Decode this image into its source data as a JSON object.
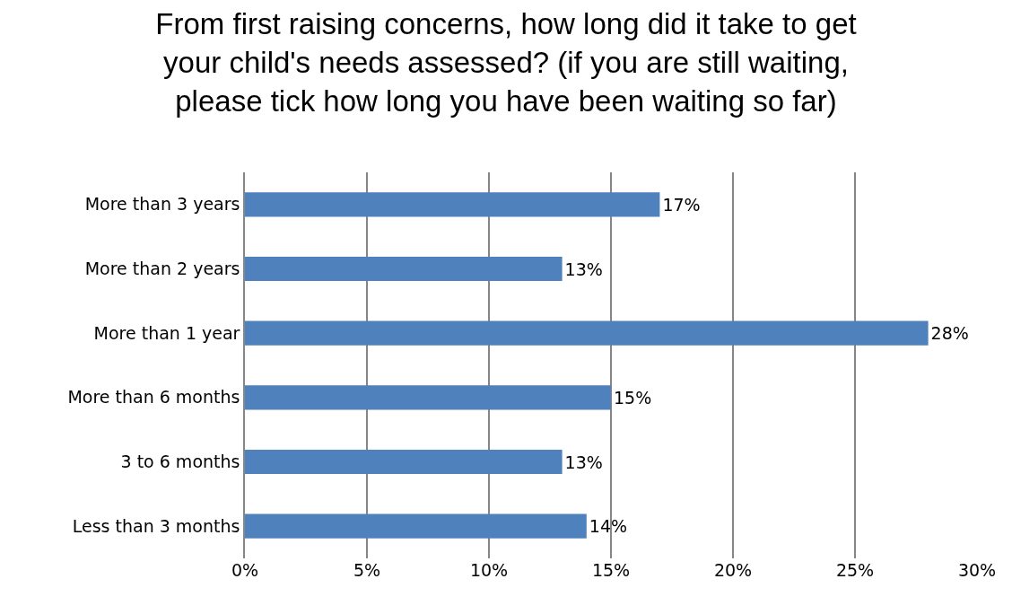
{
  "chart_data": {
    "type": "bar",
    "orientation": "horizontal",
    "title": "From first raising concerns, how long did it take to get your child's needs assessed? (if you are still waiting, please tick how long you have been waiting so far)",
    "categories": [
      "More than 3 years",
      "More than 2 years",
      "More than 1 year",
      "More than 6 months",
      "3 to 6 months",
      "Less than 3 months"
    ],
    "values": [
      17,
      13,
      28,
      15,
      13,
      14
    ],
    "value_labels": [
      "17%",
      "13%",
      "28%",
      "15%",
      "13%",
      "14%"
    ],
    "color": "#4f81bd",
    "xlim": [
      0,
      30
    ],
    "xticks": [
      {
        "value": 0,
        "label": "0%"
      },
      {
        "value": 5,
        "label": "5%"
      },
      {
        "value": 10,
        "label": "10%"
      },
      {
        "value": 15,
        "label": "15%"
      },
      {
        "value": 20,
        "label": "20%"
      },
      {
        "value": 25,
        "label": "25%"
      },
      {
        "value": 30,
        "label": "30%"
      }
    ],
    "grid": "x",
    "legend": false
  }
}
